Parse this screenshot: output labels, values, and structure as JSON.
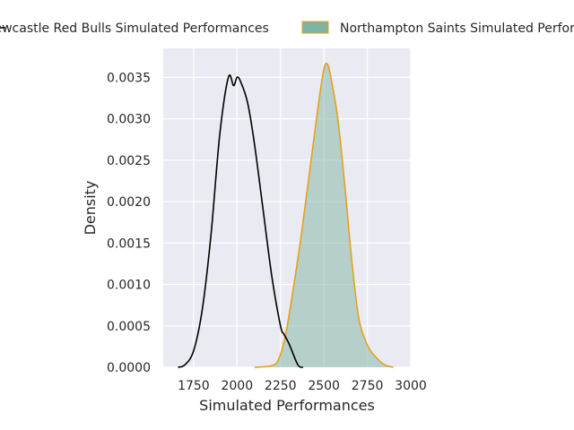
{
  "chart_data": {
    "type": "area",
    "title": "",
    "xlabel": "Simulated Performances",
    "ylabel": "Density",
    "xlim": [
      1575,
      3000
    ],
    "ylim": [
      0,
      0.00385
    ],
    "x_ticks": [
      1750,
      2000,
      2250,
      2500,
      2750,
      3000
    ],
    "y_ticks": [
      0.0,
      0.0005,
      0.001,
      0.0015,
      0.002,
      0.0025,
      0.003,
      0.0035
    ],
    "x_tick_labels": [
      "1750",
      "2000",
      "2250",
      "2500",
      "2750",
      "3000"
    ],
    "y_tick_labels": [
      "0.0000",
      "0.0005",
      "0.0010",
      "0.0015",
      "0.0020",
      "0.0025",
      "0.0030",
      "0.0035"
    ],
    "grid": true,
    "legend_placement": "top, outside plot area",
    "background_color": "#eaeaf2",
    "grid_color": "#ffffff",
    "series": [
      {
        "name": "Newcastle Red Bulls Simulated Performances",
        "style": "line",
        "color": "#000000",
        "x": [
          1660,
          1700,
          1750,
          1800,
          1850,
          1900,
          1950,
          1980,
          2000,
          2020,
          2060,
          2100,
          2150,
          2200,
          2250,
          2270,
          2300,
          2350,
          2380
        ],
        "y": [
          0.0,
          3e-05,
          0.0002,
          0.0007,
          0.0016,
          0.0028,
          0.0035,
          0.0034,
          0.0035,
          0.00345,
          0.0032,
          0.0027,
          0.0019,
          0.0011,
          0.0005,
          0.0004,
          0.00028,
          3e-05,
          0.0
        ]
      },
      {
        "name": "Northampton Saints Simulated Performances",
        "style": "filled",
        "color": "#e6a117",
        "fill": "#7fb3a3",
        "x": [
          2100,
          2200,
          2240,
          2280,
          2320,
          2370,
          2420,
          2470,
          2500,
          2520,
          2540,
          2580,
          2620,
          2660,
          2700,
          2750,
          2800,
          2850,
          2900
        ],
        "y": [
          0.0,
          2e-05,
          0.0001,
          0.0004,
          0.0009,
          0.0016,
          0.0024,
          0.0032,
          0.0036,
          0.00366,
          0.0035,
          0.003,
          0.0022,
          0.0013,
          0.0006,
          0.00027,
          0.00012,
          3e-05,
          0.0
        ]
      }
    ]
  }
}
